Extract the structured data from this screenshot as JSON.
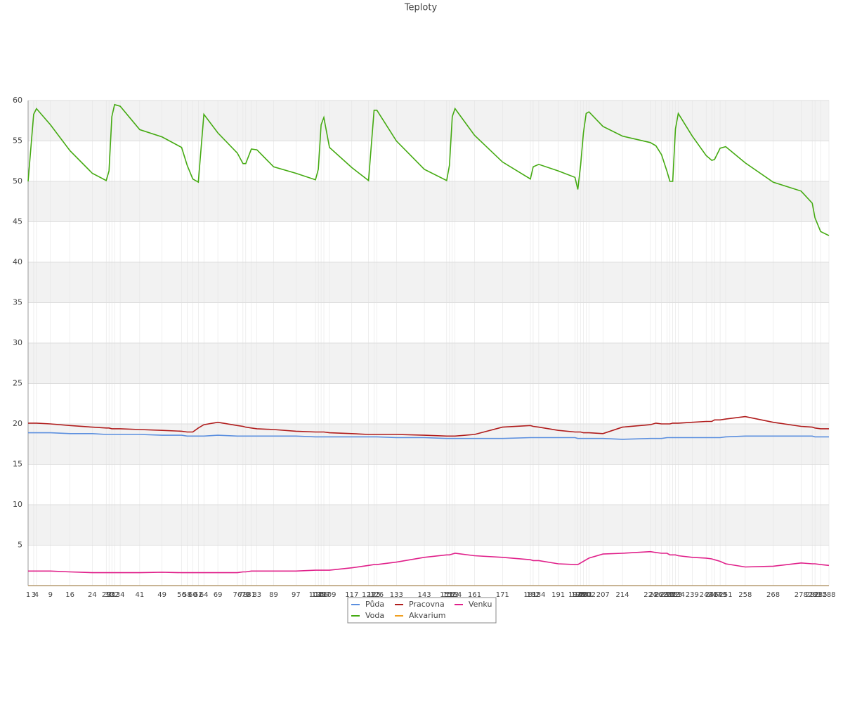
{
  "chart_data": {
    "type": "line",
    "title": "Teploty",
    "x": [
      1,
      3,
      4,
      9,
      16,
      24,
      29,
      30,
      31,
      32,
      34,
      41,
      49,
      56,
      58,
      60,
      62,
      64,
      69,
      76,
      78,
      79,
      81,
      83,
      89,
      97,
      104,
      105,
      106,
      107,
      109,
      117,
      123,
      125,
      126,
      133,
      143,
      151,
      152,
      153,
      154,
      161,
      171,
      181,
      182,
      184,
      191,
      197,
      198,
      199,
      200,
      201,
      202,
      207,
      214,
      224,
      226,
      228,
      230,
      231,
      232,
      233,
      234,
      239,
      244,
      246,
      247,
      249,
      251,
      258,
      268,
      278,
      282,
      283,
      285,
      288
    ],
    "xlim": [
      1,
      288
    ],
    "ylim": [
      0,
      60
    ],
    "yticks": [
      5,
      10,
      15,
      20,
      25,
      30,
      35,
      40,
      45,
      50,
      55,
      60
    ],
    "grid": true,
    "legend": "bottom",
    "series": [
      {
        "name": "Půda",
        "color": "#5b8fdf",
        "values": [
          18.9,
          18.9,
          18.9,
          18.9,
          18.8,
          18.8,
          18.7,
          18.7,
          18.7,
          18.7,
          18.7,
          18.7,
          18.6,
          18.6,
          18.5,
          18.5,
          18.5,
          18.5,
          18.6,
          18.5,
          18.5,
          18.5,
          18.5,
          18.5,
          18.5,
          18.5,
          18.4,
          18.4,
          18.4,
          18.4,
          18.4,
          18.4,
          18.4,
          18.4,
          18.4,
          18.3,
          18.3,
          18.2,
          18.2,
          18.2,
          18.2,
          18.2,
          18.2,
          18.3,
          18.3,
          18.3,
          18.3,
          18.3,
          18.2,
          18.2,
          18.2,
          18.2,
          18.2,
          18.2,
          18.1,
          18.2,
          18.2,
          18.2,
          18.3,
          18.3,
          18.3,
          18.3,
          18.3,
          18.3,
          18.3,
          18.3,
          18.3,
          18.3,
          18.4,
          18.5,
          18.5,
          18.5,
          18.5,
          18.4,
          18.4,
          18.4
        ]
      },
      {
        "name": "Voda",
        "color": "#44aa11",
        "values": [
          50,
          58.3,
          59,
          57,
          53.8,
          51,
          50.1,
          51.3,
          58,
          59.5,
          59.3,
          56.4,
          55.5,
          54.2,
          52,
          50.3,
          49.9,
          58.3,
          56,
          53.5,
          52.2,
          52.2,
          54,
          53.9,
          51.8,
          51,
          50.2,
          51.5,
          57,
          57.9,
          54.2,
          51.7,
          50.1,
          58.8,
          58.8,
          55,
          51.5,
          50.1,
          52,
          58,
          59,
          55.7,
          52.4,
          50.3,
          51.8,
          52.1,
          51.3,
          50.5,
          49,
          52,
          56,
          58.4,
          58.6,
          56.8,
          55.6,
          54.8,
          54.4,
          53.3,
          51.2,
          50,
          50,
          56.5,
          58.4,
          55.6,
          53.2,
          52.6,
          52.7,
          54.1,
          54.3,
          52.3,
          49.9,
          48.8,
          47.3,
          45.5,
          43.8,
          43.3
        ]
      },
      {
        "name": "Pracovna",
        "color": "#b01c1c",
        "values": [
          20.1,
          20.1,
          20.1,
          20,
          19.8,
          19.6,
          19.5,
          19.5,
          19.4,
          19.4,
          19.4,
          19.3,
          19.2,
          19.1,
          19,
          19,
          19.5,
          19.9,
          20.2,
          19.8,
          19.7,
          19.6,
          19.5,
          19.4,
          19.3,
          19.1,
          19,
          19,
          19,
          19,
          18.9,
          18.8,
          18.7,
          18.7,
          18.7,
          18.7,
          18.6,
          18.5,
          18.5,
          18.5,
          18.5,
          18.7,
          19.6,
          19.8,
          19.7,
          19.6,
          19.2,
          19,
          19,
          19,
          18.9,
          18.9,
          18.9,
          18.8,
          19.6,
          19.9,
          20.1,
          20,
          20,
          20,
          20.1,
          20.1,
          20.1,
          20.2,
          20.3,
          20.3,
          20.5,
          20.5,
          20.6,
          20.9,
          20.2,
          19.7,
          19.6,
          19.5,
          19.4,
          19.4
        ]
      },
      {
        "name": "Akvarium",
        "color": "#f0a020",
        "values": [
          0,
          0,
          0,
          0,
          0,
          0,
          0,
          0,
          0,
          0,
          0,
          0,
          0,
          0,
          0,
          0,
          0,
          0,
          0,
          0,
          0,
          0,
          0,
          0,
          0,
          0,
          0,
          0,
          0,
          0,
          0,
          0,
          0,
          0,
          0,
          0,
          0,
          0,
          0,
          0,
          0,
          0,
          0,
          0,
          0,
          0,
          0,
          0,
          0,
          0,
          0,
          0,
          0,
          0,
          0,
          0,
          0,
          0,
          0,
          0,
          0,
          0,
          0,
          0,
          0,
          0,
          0,
          0,
          0,
          0,
          0,
          0,
          0,
          0,
          0,
          0
        ]
      },
      {
        "name": "Venku",
        "color": "#e0208a",
        "values": [
          1.8,
          1.8,
          1.8,
          1.8,
          1.7,
          1.6,
          1.6,
          1.6,
          1.6,
          1.6,
          1.6,
          1.6,
          1.65,
          1.6,
          1.6,
          1.6,
          1.6,
          1.6,
          1.6,
          1.6,
          1.7,
          1.7,
          1.8,
          1.8,
          1.8,
          1.8,
          1.9,
          1.9,
          1.9,
          1.9,
          1.9,
          2.2,
          2.5,
          2.6,
          2.6,
          2.9,
          3.5,
          3.8,
          3.8,
          3.9,
          4,
          3.7,
          3.5,
          3.2,
          3.1,
          3.1,
          2.7,
          2.6,
          2.6,
          2.8,
          3,
          3.2,
          3.4,
          3.9,
          4,
          4.2,
          4.1,
          4,
          4,
          3.8,
          3.8,
          3.8,
          3.7,
          3.5,
          3.4,
          3.3,
          3.2,
          3,
          2.7,
          2.3,
          2.4,
          2.8,
          2.7,
          2.7,
          2.6,
          2.5
        ]
      }
    ]
  }
}
